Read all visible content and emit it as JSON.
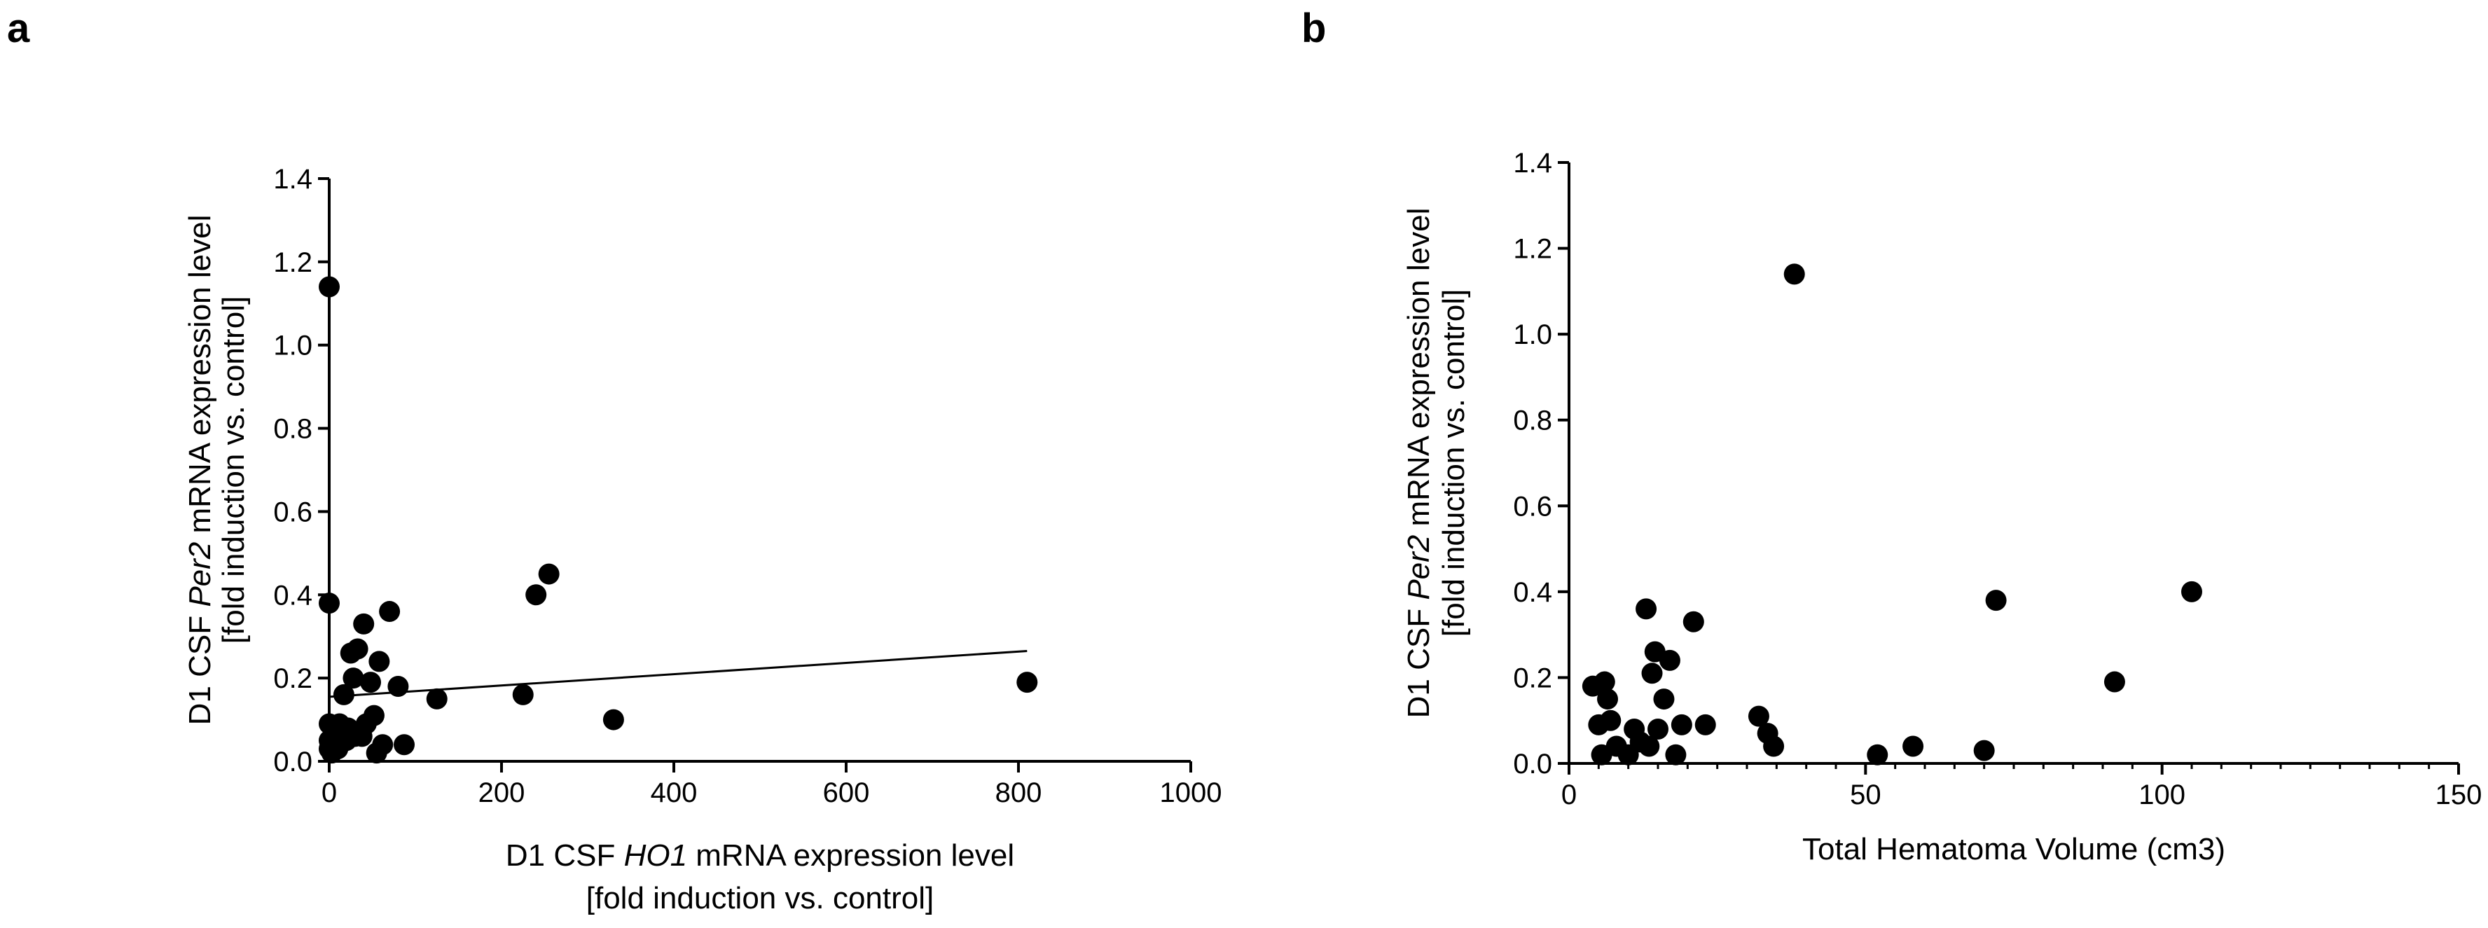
{
  "chart_data": [
    {
      "panel": "a",
      "type": "scatter",
      "title": "",
      "xlabel_lines": [
        {
          "pre": "D1 CSF ",
          "italic": "HO1",
          "post": " mRNA expression level"
        },
        {
          "pre": "[fold induction vs. control]",
          "italic": "",
          "post": ""
        }
      ],
      "ylabel_lines": [
        {
          "pre": "D1 CSF ",
          "italic": "Per2",
          "post": " mRNA expression level"
        },
        {
          "pre": "[fold induction vs. control]",
          "italic": "",
          "post": ""
        }
      ],
      "xlim": [
        0,
        1000
      ],
      "ylim": [
        0,
        1.4
      ],
      "xticks": [
        0,
        200,
        400,
        600,
        800,
        1000
      ],
      "xtick_labels": [
        "0",
        "200",
        "400",
        "600",
        "800",
        "1000"
      ],
      "yticks": [
        0.0,
        0.2,
        0.4,
        0.6,
        0.8,
        1.0,
        1.2,
        1.4
      ],
      "ytick_labels": [
        "0.0",
        "0.2",
        "0.4",
        "0.6",
        "0.8",
        "1.0",
        "1.2",
        "1.4"
      ],
      "grid": false,
      "points": [
        [
          0,
          1.14
        ],
        [
          0,
          0.38
        ],
        [
          0,
          0.09
        ],
        [
          0,
          0.05
        ],
        [
          0,
          0.03
        ],
        [
          3,
          0.02
        ],
        [
          5,
          0.07
        ],
        [
          8,
          0.04
        ],
        [
          10,
          0.03
        ],
        [
          12,
          0.09
        ],
        [
          15,
          0.06
        ],
        [
          17,
          0.16
        ],
        [
          20,
          0.05
        ],
        [
          22,
          0.08
        ],
        [
          25,
          0.26
        ],
        [
          28,
          0.2
        ],
        [
          30,
          0.06
        ],
        [
          33,
          0.27
        ],
        [
          38,
          0.06
        ],
        [
          40,
          0.33
        ],
        [
          43,
          0.09
        ],
        [
          48,
          0.19
        ],
        [
          52,
          0.11
        ],
        [
          55,
          0.02
        ],
        [
          58,
          0.24
        ],
        [
          62,
          0.04
        ],
        [
          70,
          0.36
        ],
        [
          80,
          0.18
        ],
        [
          87,
          0.04
        ],
        [
          125,
          0.15
        ],
        [
          225,
          0.16
        ],
        [
          240,
          0.4
        ],
        [
          255,
          0.45
        ],
        [
          330,
          0.1
        ],
        [
          810,
          0.19
        ]
      ],
      "regression_line": {
        "x": [
          0,
          810
        ],
        "y": [
          0.155,
          0.265
        ]
      }
    },
    {
      "panel": "b",
      "type": "scatter",
      "title": "",
      "xlabel_lines": [
        {
          "pre": "Total Hematoma Volume (cm3)",
          "italic": "",
          "post": ""
        }
      ],
      "ylabel_lines": [
        {
          "pre": "D1 CSF ",
          "italic": "Per2",
          "post": " mRNA expression level"
        },
        {
          "pre": "[fold induction vs. control]",
          "italic": "",
          "post": ""
        }
      ],
      "xlim": [
        0,
        150
      ],
      "ylim": [
        0,
        1.4
      ],
      "xticks": [
        0,
        50,
        100,
        150
      ],
      "xtick_labels": [
        "0",
        "50",
        "100",
        "150"
      ],
      "x_minor_step": 5,
      "yticks": [
        0.0,
        0.2,
        0.4,
        0.6,
        0.8,
        1.0,
        1.2,
        1.4
      ],
      "ytick_labels": [
        "0.0",
        "0.2",
        "0.4",
        "0.6",
        "0.8",
        "1.0",
        "1.2",
        "1.4"
      ],
      "grid": false,
      "points": [
        [
          4,
          0.18
        ],
        [
          5,
          0.09
        ],
        [
          5.5,
          0.02
        ],
        [
          6,
          0.19
        ],
        [
          6.5,
          0.15
        ],
        [
          7,
          0.1
        ],
        [
          8,
          0.04
        ],
        [
          10,
          0.02
        ],
        [
          11,
          0.08
        ],
        [
          12,
          0.05
        ],
        [
          13,
          0.36
        ],
        [
          13.5,
          0.04
        ],
        [
          14,
          0.21
        ],
        [
          14.5,
          0.26
        ],
        [
          15,
          0.08
        ],
        [
          16,
          0.15
        ],
        [
          17,
          0.24
        ],
        [
          18,
          0.02
        ],
        [
          19,
          0.09
        ],
        [
          21,
          0.33
        ],
        [
          23,
          0.09
        ],
        [
          32,
          0.11
        ],
        [
          33.5,
          0.07
        ],
        [
          34.5,
          0.04
        ],
        [
          38,
          1.14
        ],
        [
          52,
          0.02
        ],
        [
          58,
          0.04
        ],
        [
          70,
          0.03
        ],
        [
          72,
          0.38
        ],
        [
          92,
          0.19
        ],
        [
          105,
          0.4
        ]
      ]
    }
  ],
  "panels": {
    "a": {
      "letter": "a"
    },
    "b": {
      "letter": "b"
    }
  }
}
